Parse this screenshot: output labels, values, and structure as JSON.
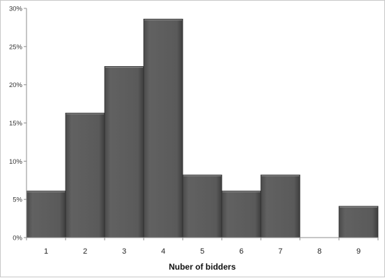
{
  "chart_data": {
    "type": "bar",
    "title": "",
    "xlabel": "Nuber of bidders",
    "ylabel": "",
    "categories": [
      "1",
      "2",
      "3",
      "4",
      "5",
      "6",
      "7",
      "8",
      "9"
    ],
    "values": [
      6.1,
      16.3,
      22.4,
      28.6,
      8.2,
      6.1,
      8.2,
      0,
      4.1
    ],
    "value_unit": "%",
    "ylim": [
      0,
      30
    ],
    "yticks": [
      0,
      5,
      10,
      15,
      20,
      25,
      30
    ],
    "ytick_labels": [
      "0%",
      "5%",
      "10%",
      "15%",
      "20%",
      "25%",
      "30%"
    ],
    "grid": false,
    "legend": "none",
    "bar_color": "#595959"
  }
}
